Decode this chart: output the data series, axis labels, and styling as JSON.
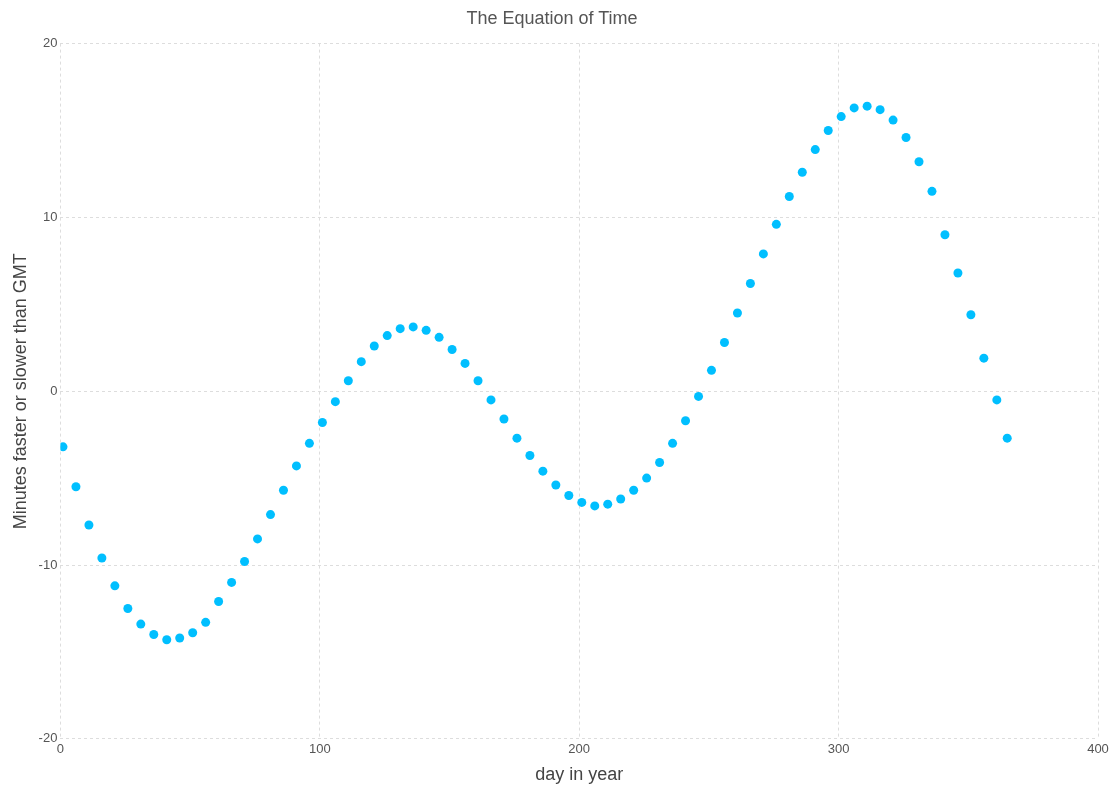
{
  "chart_data": {
    "type": "scatter",
    "title": "The Equation of Time",
    "xlabel": "day in year",
    "ylabel": "Minutes faster or slower than GMT",
    "xlim": [
      0,
      400
    ],
    "xticks": [
      0,
      100,
      200,
      300,
      400
    ],
    "ylim": [
      -20,
      20
    ],
    "yticks": [
      -20,
      -10,
      0,
      10,
      20
    ],
    "grid": true,
    "legend": false,
    "marker": "circle",
    "series": [
      {
        "color": "#00bfff",
        "x": [
          1,
          6,
          11,
          16,
          21,
          26,
          31,
          36,
          41,
          46,
          51,
          56,
          61,
          66,
          71,
          76,
          81,
          86,
          91,
          96,
          101,
          106,
          111,
          116,
          121,
          126,
          131,
          136,
          141,
          146,
          151,
          156,
          161,
          166,
          171,
          176,
          181,
          186,
          191,
          196,
          201,
          206,
          211,
          216,
          221,
          226,
          231,
          236,
          241,
          246,
          251,
          256,
          261,
          266,
          271,
          276,
          281,
          286,
          291,
          296,
          301,
          306,
          311,
          316,
          321,
          326,
          331,
          336,
          341,
          346,
          351,
          356,
          361,
          365
        ],
        "values": [
          -3.2,
          -5.5,
          -7.7,
          -9.6,
          -11.2,
          -12.5,
          -13.4,
          -14.0,
          -14.3,
          -14.2,
          -13.9,
          -13.3,
          -12.1,
          -11.0,
          -9.8,
          -8.5,
          -7.1,
          -5.7,
          -4.3,
          -3.0,
          -1.8,
          -0.6,
          0.6,
          1.7,
          2.6,
          3.2,
          3.6,
          3.7,
          3.5,
          3.1,
          2.4,
          1.6,
          0.6,
          -0.5,
          -1.6,
          -2.7,
          -3.7,
          -4.6,
          -5.4,
          -6.0,
          -6.4,
          -6.6,
          -6.5,
          -6.2,
          -5.7,
          -5.0,
          -4.1,
          -3.0,
          -1.7,
          -0.3,
          1.2,
          2.8,
          4.5,
          6.2,
          7.9,
          9.6,
          11.2,
          12.6,
          13.9,
          15.0,
          15.8,
          16.3,
          16.4,
          16.2,
          15.6,
          14.6,
          13.2,
          11.5,
          9.0,
          6.8,
          4.4,
          1.9,
          -0.5,
          -2.7
        ]
      }
    ]
  }
}
